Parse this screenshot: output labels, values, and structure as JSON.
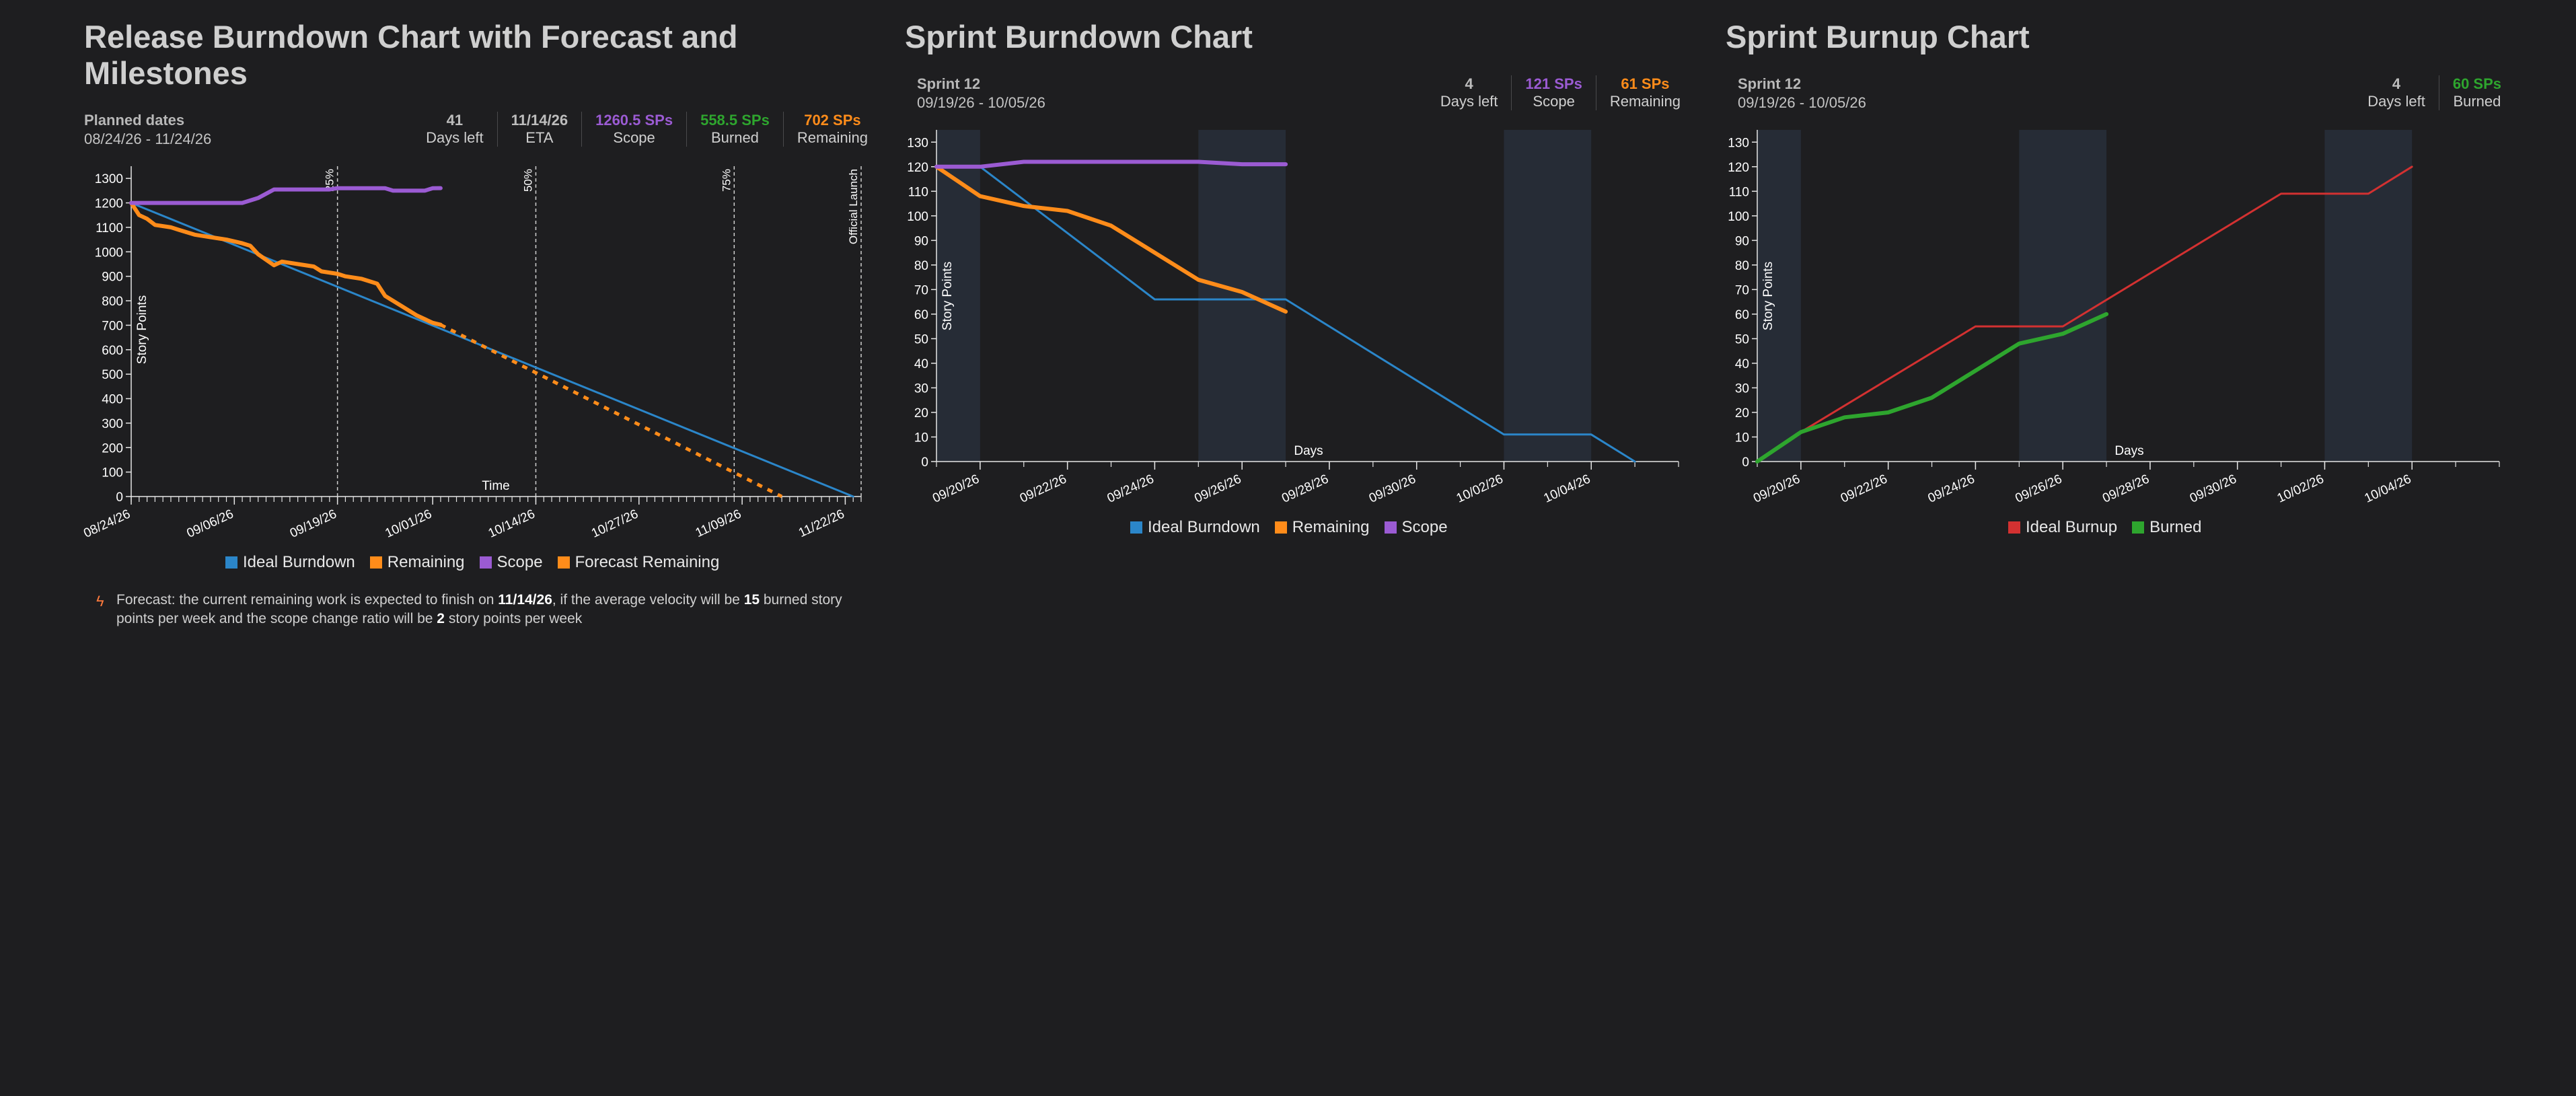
{
  "colors": {
    "background": "#1e1e20",
    "ideal": "#2b86c9",
    "remaining": "#ff8c1a",
    "scope": "#9b5bd3",
    "burned": "#2ea52e",
    "ideal_burnup": "#d33131",
    "milestone_25": "#d33131",
    "weekend_band": "#262c36"
  },
  "release": {
    "title": "Release Burndown Chart with Forecast and Milestones",
    "dates_label": "Planned dates",
    "dates_value": "08/24/26 - 11/24/26",
    "stats": [
      {
        "value": "41",
        "label": "Days left",
        "color": "#bdbdbd"
      },
      {
        "value": "11/14/26",
        "label": "ETA",
        "color": "#bdbdbd"
      },
      {
        "value": "1260.5 SPs",
        "label": "Scope",
        "color": "#9b5bd3"
      },
      {
        "value": "558.5 SPs",
        "label": "Burned",
        "color": "#2ea52e"
      },
      {
        "value": "702 SPs",
        "label": "Remaining",
        "color": "#ff8c1a"
      }
    ],
    "legend": [
      {
        "label": "Ideal Burndown",
        "color": "#2b86c9"
      },
      {
        "label": "Remaining",
        "color": "#ff8c1a"
      },
      {
        "label": "Scope",
        "color": "#9b5bd3"
      },
      {
        "label": "Forecast Remaining",
        "color": "#ff8c1a"
      }
    ],
    "forecast_note": {
      "icon": "lightning-icon",
      "t1": "Forecast: the current remaining work is expected to finish on ",
      "eta": "11/14/26",
      "t2": ", if the average velocity will be ",
      "velocity": "15",
      "t3": " burned story points per week and the scope change ratio will be ",
      "scope_change": "2",
      "t4": " story points per week"
    }
  },
  "sprint_burndown": {
    "title": "Sprint Burndown Chart",
    "sprint_name": "Sprint 12",
    "sprint_dates": "09/19/26 - 10/05/26",
    "stats": [
      {
        "value": "4",
        "label": "Days left",
        "color": "#bdbdbd"
      },
      {
        "value": "121 SPs",
        "label": "Scope",
        "color": "#9b5bd3"
      },
      {
        "value": "61 SPs",
        "label": "Remaining",
        "color": "#ff8c1a"
      }
    ],
    "legend": [
      {
        "label": "Ideal Burndown",
        "color": "#2b86c9"
      },
      {
        "label": "Remaining",
        "color": "#ff8c1a"
      },
      {
        "label": "Scope",
        "color": "#9b5bd3"
      }
    ]
  },
  "sprint_burnup": {
    "title": "Sprint Burnup Chart",
    "sprint_name": "Sprint 12",
    "sprint_dates": "09/19/26 - 10/05/26",
    "stats": [
      {
        "value": "4",
        "label": "Days left",
        "color": "#bdbdbd"
      },
      {
        "value": "60 SPs",
        "label": "Burned",
        "color": "#2ea52e"
      }
    ],
    "legend": [
      {
        "label": "Ideal Burnup",
        "color": "#d33131"
      },
      {
        "label": "Burned",
        "color": "#2ea52e"
      }
    ]
  },
  "chart_data": [
    {
      "type": "line",
      "title": "Release Burndown Chart with Forecast and Milestones",
      "xlabel": "Time",
      "ylabel": "Story Points",
      "x_domain": [
        "2026-08-24",
        "2026-11-24"
      ],
      "ylim": [
        0,
        1350
      ],
      "y_ticks": [
        0,
        100,
        200,
        300,
        400,
        500,
        600,
        700,
        800,
        900,
        1000,
        1100,
        1200,
        1300
      ],
      "x_ticks": [
        "08/24/26",
        "09/06/26",
        "09/19/26",
        "10/01/26",
        "10/14/26",
        "10/27/26",
        "11/09/26",
        "11/22/26"
      ],
      "milestones": [
        {
          "label": "25%",
          "date": "2026-09-19",
          "color": "#d33131"
        },
        {
          "label": "50%",
          "date": "2026-10-14",
          "color": "#c8c8c8"
        },
        {
          "label": "75%",
          "date": "2026-11-08",
          "color": "#c8c8c8"
        },
        {
          "label": "Official Launch",
          "date": "2026-11-24",
          "color": "#c8c8c8"
        }
      ],
      "series": [
        {
          "name": "Ideal Burndown",
          "dash": false,
          "points": [
            [
              "2026-08-24",
              1200
            ],
            [
              "2026-11-23",
              0
            ]
          ]
        },
        {
          "name": "Remaining",
          "dash": false,
          "points": [
            [
              "2026-08-24",
              1200
            ],
            [
              "2026-08-25",
              1150
            ],
            [
              "2026-08-26",
              1135
            ],
            [
              "2026-08-27",
              1110
            ],
            [
              "2026-08-29",
              1100
            ],
            [
              "2026-08-30",
              1090
            ],
            [
              "2026-09-01",
              1070
            ],
            [
              "2026-09-02",
              1065
            ],
            [
              "2026-09-03",
              1060
            ],
            [
              "2026-09-05",
              1050
            ],
            [
              "2026-09-07",
              1035
            ],
            [
              "2026-09-08",
              1025
            ],
            [
              "2026-09-09",
              990
            ],
            [
              "2026-09-11",
              945
            ],
            [
              "2026-09-12",
              960
            ],
            [
              "2026-09-14",
              950
            ],
            [
              "2026-09-16",
              940
            ],
            [
              "2026-09-17",
              920
            ],
            [
              "2026-09-19",
              910
            ],
            [
              "2026-09-20",
              900
            ],
            [
              "2026-09-22",
              890
            ],
            [
              "2026-09-24",
              870
            ],
            [
              "2026-09-25",
              820
            ],
            [
              "2026-09-27",
              780
            ],
            [
              "2026-09-29",
              740
            ],
            [
              "2026-10-01",
              710
            ],
            [
              "2026-10-02",
              702
            ]
          ]
        },
        {
          "name": "Scope",
          "dash": false,
          "points": [
            [
              "2026-08-24",
              1200
            ],
            [
              "2026-09-07",
              1200
            ],
            [
              "2026-09-09",
              1220
            ],
            [
              "2026-09-11",
              1255
            ],
            [
              "2026-09-18",
              1255
            ],
            [
              "2026-09-19",
              1260
            ],
            [
              "2026-09-25",
              1260
            ],
            [
              "2026-09-26",
              1250
            ],
            [
              "2026-09-30",
              1250
            ],
            [
              "2026-10-01",
              1260
            ],
            [
              "2026-10-02",
              1260.5
            ]
          ]
        },
        {
          "name": "Forecast Remaining",
          "dash": true,
          "points": [
            [
              "2026-10-02",
              702
            ],
            [
              "2026-11-14",
              0
            ]
          ]
        }
      ]
    },
    {
      "type": "line",
      "title": "Sprint Burndown Chart",
      "xlabel": "Days",
      "ylabel": "Story Points",
      "x_domain": [
        "2026-09-19",
        "2026-10-06"
      ],
      "ylim": [
        0,
        135
      ],
      "y_ticks": [
        0,
        10,
        20,
        30,
        40,
        50,
        60,
        70,
        80,
        90,
        100,
        110,
        120,
        130
      ],
      "x_ticks": [
        "09/20/26",
        "09/22/26",
        "09/24/26",
        "09/26/26",
        "09/28/26",
        "09/30/26",
        "10/02/26",
        "10/04/26"
      ],
      "weekends": [
        [
          "2026-09-19",
          "2026-09-20"
        ],
        [
          "2026-09-25",
          "2026-09-27"
        ],
        [
          "2026-10-02",
          "2026-10-04"
        ]
      ],
      "series": [
        {
          "name": "Ideal Burndown",
          "points": [
            [
              "2026-09-19",
              120
            ],
            [
              "2026-09-20",
              120
            ],
            [
              "2026-09-24",
              66
            ],
            [
              "2026-09-27",
              66
            ],
            [
              "2026-10-02",
              11
            ],
            [
              "2026-10-04",
              11
            ],
            [
              "2026-10-05",
              0
            ]
          ]
        },
        {
          "name": "Remaining",
          "points": [
            [
              "2026-09-19",
              120
            ],
            [
              "2026-09-20",
              108
            ],
            [
              "2026-09-21",
              104
            ],
            [
              "2026-09-22",
              102
            ],
            [
              "2026-09-23",
              96
            ],
            [
              "2026-09-24",
              85
            ],
            [
              "2026-09-25",
              74
            ],
            [
              "2026-09-26",
              69
            ],
            [
              "2026-09-27",
              61
            ]
          ]
        },
        {
          "name": "Scope",
          "points": [
            [
              "2026-09-19",
              120
            ],
            [
              "2026-09-20",
              120
            ],
            [
              "2026-09-21",
              122
            ],
            [
              "2026-09-25",
              122
            ],
            [
              "2026-09-26",
              121
            ],
            [
              "2026-09-27",
              121
            ]
          ]
        }
      ]
    },
    {
      "type": "line",
      "title": "Sprint Burnup Chart",
      "xlabel": "Days",
      "ylabel": "Story Points",
      "x_domain": [
        "2026-09-19",
        "2026-10-06"
      ],
      "ylim": [
        0,
        135
      ],
      "y_ticks": [
        0,
        10,
        20,
        30,
        40,
        50,
        60,
        70,
        80,
        90,
        100,
        110,
        120,
        130
      ],
      "x_ticks": [
        "09/20/26",
        "09/22/26",
        "09/24/26",
        "09/26/26",
        "09/28/26",
        "09/30/26",
        "10/02/26",
        "10/04/26"
      ],
      "weekends": [
        [
          "2026-09-19",
          "2026-09-20"
        ],
        [
          "2026-09-25",
          "2026-09-27"
        ],
        [
          "2026-10-02",
          "2026-10-04"
        ]
      ],
      "series": [
        {
          "name": "Ideal Burnup",
          "points": [
            [
              "2026-09-19",
              0
            ],
            [
              "2026-09-20",
              12
            ],
            [
              "2026-09-24",
              55
            ],
            [
              "2026-09-26",
              55
            ],
            [
              "2026-10-01",
              109
            ],
            [
              "2026-10-03",
              109
            ],
            [
              "2026-10-04",
              120
            ]
          ]
        },
        {
          "name": "Burned",
          "points": [
            [
              "2026-09-19",
              0
            ],
            [
              "2026-09-20",
              12
            ],
            [
              "2026-09-21",
              18
            ],
            [
              "2026-09-22",
              20
            ],
            [
              "2026-09-23",
              26
            ],
            [
              "2026-09-24",
              37
            ],
            [
              "2026-09-25",
              48
            ],
            [
              "2026-09-26",
              52
            ],
            [
              "2026-09-27",
              60
            ]
          ]
        }
      ]
    }
  ]
}
